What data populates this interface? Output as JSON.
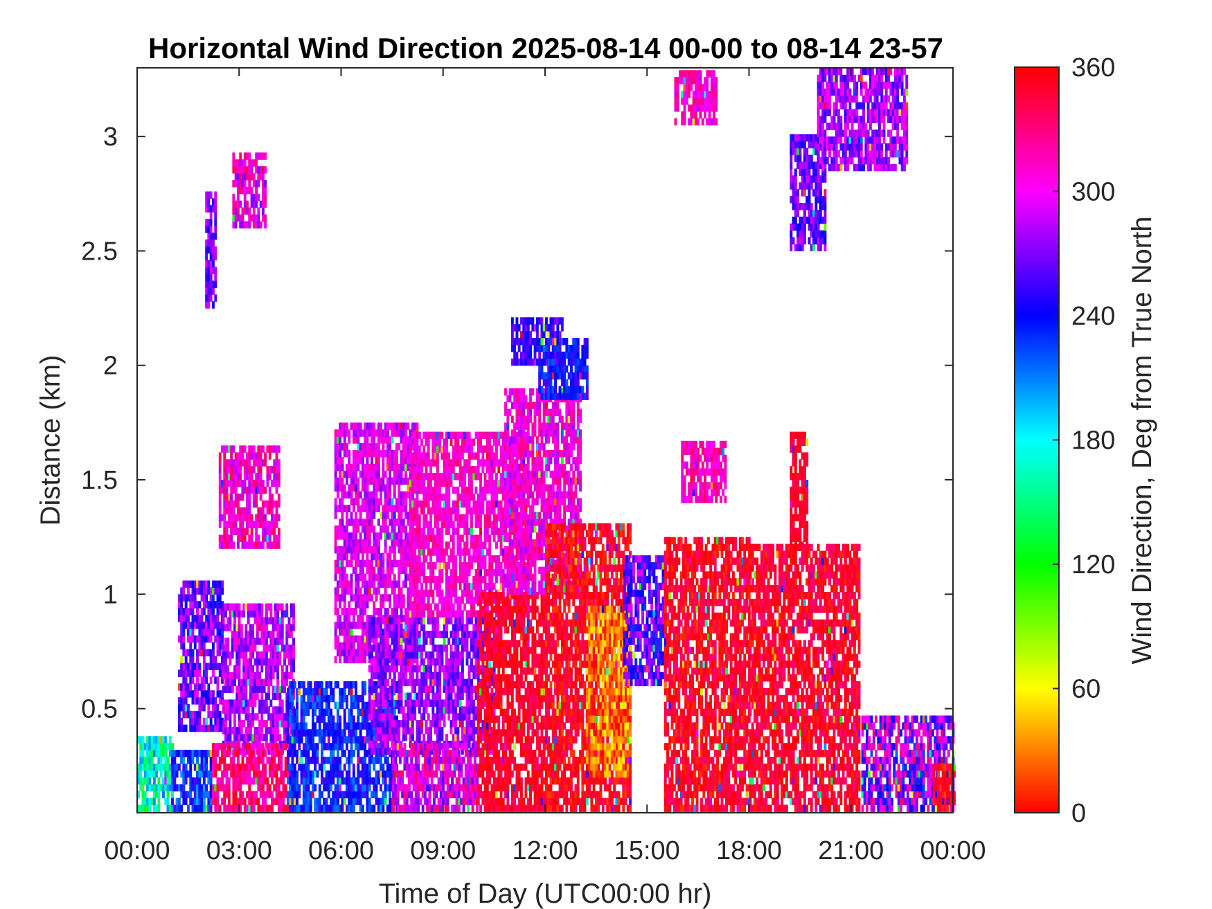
{
  "chart_data": {
    "type": "heatmap",
    "title": "Horizontal Wind Direction 2025-08-14 00-00 to 08-14 23-57",
    "xlabel": "Time of Day (UTC00:00 hr)",
    "ylabel": "Distance (km)",
    "xlim_hours": [
      0,
      24
    ],
    "ylim_km": [
      0.045,
      3.3
    ],
    "x_ticks": [
      {
        "value": 0,
        "label": "00:00"
      },
      {
        "value": 3,
        "label": "03:00"
      },
      {
        "value": 6,
        "label": "06:00"
      },
      {
        "value": 9,
        "label": "09:00"
      },
      {
        "value": 12,
        "label": "12:00"
      },
      {
        "value": 15,
        "label": "15:00"
      },
      {
        "value": 18,
        "label": "18:00"
      },
      {
        "value": 21,
        "label": "21:00"
      },
      {
        "value": 24,
        "label": "00:00"
      }
    ],
    "y_ticks": [
      {
        "value": 0.5,
        "label": "0.5"
      },
      {
        "value": 1,
        "label": "1"
      },
      {
        "value": 1.5,
        "label": "1.5"
      },
      {
        "value": 2,
        "label": "2"
      },
      {
        "value": 2.5,
        "label": "2.5"
      },
      {
        "value": 3,
        "label": "3"
      }
    ],
    "colorbar": {
      "label": "Wind Direction, Deg from True North",
      "range": [
        0,
        360
      ],
      "ticks": [
        {
          "value": 0,
          "label": "0"
        },
        {
          "value": 60,
          "label": "60"
        },
        {
          "value": 120,
          "label": "120"
        },
        {
          "value": 180,
          "label": "180"
        },
        {
          "value": 240,
          "label": "240"
        },
        {
          "value": 300,
          "label": "300"
        },
        {
          "value": 360,
          "label": "360"
        }
      ],
      "colormap": "hsv"
    },
    "regions": [
      {
        "t0": 0.0,
        "t1": 1.0,
        "h0": 0.05,
        "h1": 0.38,
        "deg": 170,
        "spread": 45
      },
      {
        "t0": 1.0,
        "t1": 2.2,
        "h0": 0.05,
        "h1": 0.3,
        "deg": 230,
        "spread": 30
      },
      {
        "t0": 1.2,
        "t1": 2.5,
        "h0": 0.4,
        "h1": 1.05,
        "deg": 265,
        "spread": 35
      },
      {
        "t0": 2.0,
        "t1": 2.3,
        "h0": 2.25,
        "h1": 2.75,
        "deg": 268,
        "spread": 25
      },
      {
        "t0": 2.8,
        "t1": 3.8,
        "h0": 2.6,
        "h1": 2.9,
        "deg": 300,
        "spread": 35
      },
      {
        "t0": 2.4,
        "t1": 4.2,
        "h0": 1.2,
        "h1": 1.65,
        "deg": 310,
        "spread": 30
      },
      {
        "t0": 2.5,
        "t1": 4.6,
        "h0": 0.3,
        "h1": 0.95,
        "deg": 285,
        "spread": 30
      },
      {
        "t0": 2.2,
        "t1": 4.5,
        "h0": 0.05,
        "h1": 0.35,
        "deg": 330,
        "spread": 25
      },
      {
        "t0": 4.4,
        "t1": 7.6,
        "h0": 0.05,
        "h1": 0.6,
        "deg": 235,
        "spread": 25
      },
      {
        "t0": 5.8,
        "t1": 8.2,
        "h0": 0.7,
        "h1": 1.75,
        "deg": 295,
        "spread": 25
      },
      {
        "t0": 6.8,
        "t1": 10.5,
        "h0": 0.3,
        "h1": 0.9,
        "deg": 275,
        "spread": 25
      },
      {
        "t0": 7.5,
        "t1": 10.0,
        "h0": 0.05,
        "h1": 0.35,
        "deg": 300,
        "spread": 40
      },
      {
        "t0": 8.0,
        "t1": 11.5,
        "h0": 0.9,
        "h1": 1.7,
        "deg": 310,
        "spread": 20
      },
      {
        "t0": 10.0,
        "t1": 12.0,
        "h0": 0.05,
        "h1": 1.0,
        "deg": 350,
        "spread": 15
      },
      {
        "t0": 10.8,
        "t1": 13.0,
        "h0": 1.0,
        "h1": 1.9,
        "deg": 305,
        "spread": 25
      },
      {
        "t0": 11.0,
        "t1": 12.5,
        "h0": 2.0,
        "h1": 2.2,
        "deg": 255,
        "spread": 20
      },
      {
        "t0": 11.8,
        "t1": 13.2,
        "h0": 1.85,
        "h1": 2.1,
        "deg": 240,
        "spread": 20
      },
      {
        "t0": 12.0,
        "t1": 14.5,
        "h0": 0.05,
        "h1": 1.3,
        "deg": 355,
        "spread": 20
      },
      {
        "t0": 13.2,
        "t1": 14.5,
        "h0": 0.2,
        "h1": 0.95,
        "deg": 30,
        "spread": 30
      },
      {
        "t0": 14.3,
        "t1": 15.5,
        "h0": 0.6,
        "h1": 1.15,
        "deg": 260,
        "spread": 35
      },
      {
        "t0": 15.5,
        "t1": 18.0,
        "h0": 0.05,
        "h1": 1.25,
        "deg": 352,
        "spread": 20
      },
      {
        "t0": 16.0,
        "t1": 17.3,
        "h0": 1.4,
        "h1": 1.65,
        "deg": 315,
        "spread": 25
      },
      {
        "t0": 18.0,
        "t1": 21.2,
        "h0": 0.05,
        "h1": 1.2,
        "deg": 350,
        "spread": 20
      },
      {
        "t0": 19.2,
        "t1": 19.7,
        "h0": 1.2,
        "h1": 1.7,
        "deg": 350,
        "spread": 10
      },
      {
        "t0": 19.2,
        "t1": 20.2,
        "h0": 2.5,
        "h1": 3.0,
        "deg": 265,
        "spread": 25
      },
      {
        "t0": 20.0,
        "t1": 22.6,
        "h0": 2.85,
        "h1": 3.28,
        "deg": 280,
        "spread": 30
      },
      {
        "t0": 15.8,
        "t1": 17.0,
        "h0": 3.05,
        "h1": 3.28,
        "deg": 310,
        "spread": 25
      },
      {
        "t0": 21.3,
        "t1": 24.0,
        "h0": 0.05,
        "h1": 0.45,
        "deg": 280,
        "spread": 60
      },
      {
        "t0": 23.4,
        "t1": 24.0,
        "h0": 0.05,
        "h1": 0.25,
        "deg": 355,
        "spread": 20
      }
    ]
  }
}
